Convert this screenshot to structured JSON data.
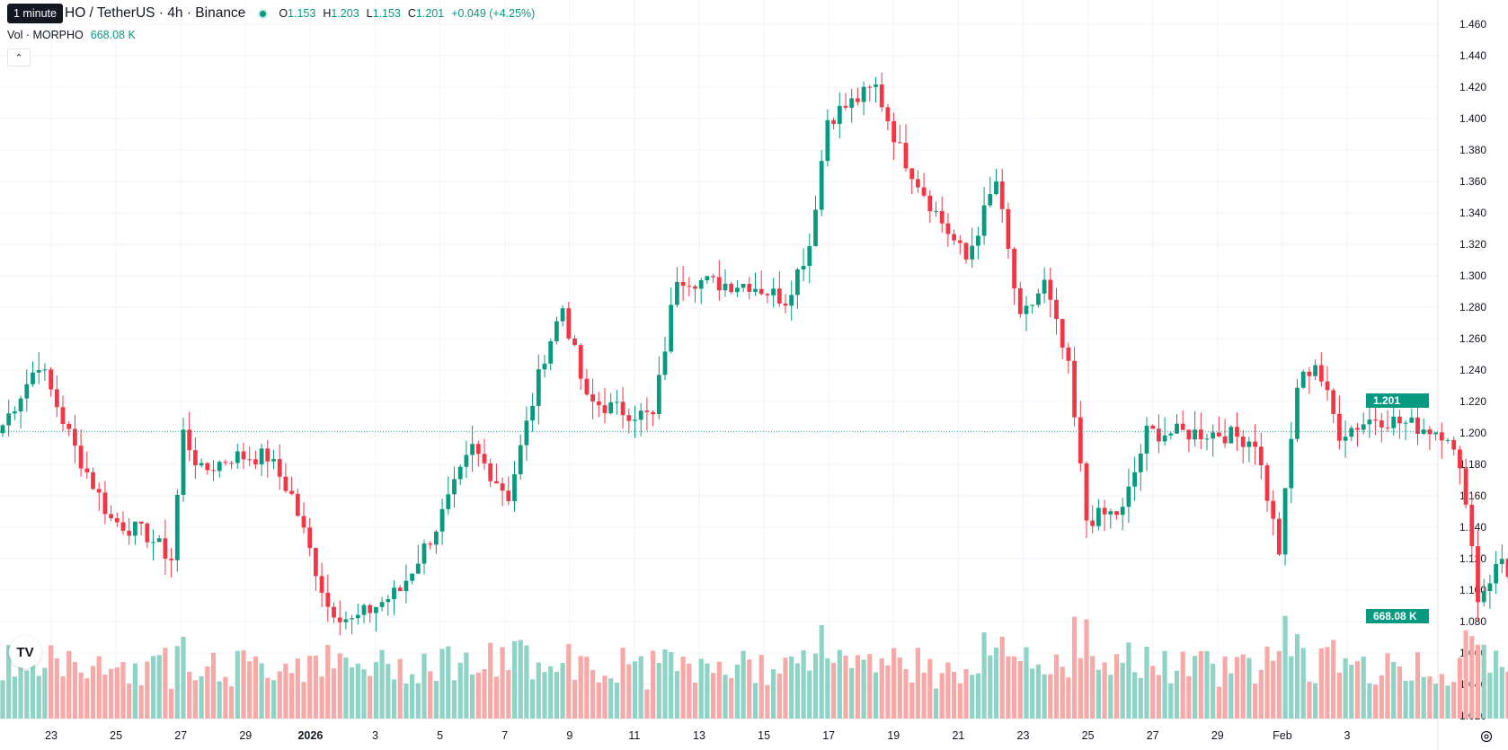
{
  "header": {
    "title": "HO / TetherUS · 4h · Binance",
    "tooltip": "1 minute",
    "ohlc": {
      "o_label": "O",
      "o": "1.153",
      "h_label": "H",
      "h": "1.203",
      "l_label": "L",
      "l": "1.153",
      "c_label": "C",
      "c": "1.201",
      "change": "+0.049 (+4.25%)"
    }
  },
  "volume_legend": {
    "label": "Vol · MORPHO",
    "value": "668.08 K"
  },
  "price_tag": "1.201",
  "volume_tag": "668.08 K",
  "logo_text": "TV",
  "colors": {
    "up": "#089981",
    "down": "#f23645",
    "up_vol": "#8fd3c7",
    "down_vol": "#f7a9a7",
    "grid": "#f0f3fa"
  },
  "chart_data": {
    "type": "candlestick",
    "symbol": "MORPHO / TetherUS",
    "interval": "4h",
    "exchange": "Binance",
    "y_ticks": [
      "1.460",
      "1.440",
      "1.420",
      "1.400",
      "1.380",
      "1.360",
      "1.340",
      "1.320",
      "1.300",
      "1.280",
      "1.260",
      "1.240",
      "1.220",
      "1.200",
      "1.180",
      "1.160",
      "1.140",
      "1.120",
      "1.100",
      "1.080",
      "1.060",
      "1.040",
      "1.020"
    ],
    "ylim": [
      1.0,
      1.47
    ],
    "x_ticks": [
      "23",
      "25",
      "27",
      "29",
      "2026",
      "3",
      "5",
      "7",
      "9",
      "11",
      "13",
      "15",
      "17",
      "19",
      "21",
      "23",
      "25",
      "27",
      "29",
      "Feb",
      "3"
    ],
    "last_close": 1.201,
    "anchors": [
      {
        "t": 0,
        "p": 1.205
      },
      {
        "t": 6,
        "p": 1.245
      },
      {
        "t": 12,
        "p": 1.19
      },
      {
        "t": 18,
        "p": 1.145
      },
      {
        "t": 24,
        "p": 1.135
      },
      {
        "t": 28,
        "p": 1.12
      },
      {
        "t": 30,
        "p": 1.2
      },
      {
        "t": 33,
        "p": 1.175
      },
      {
        "t": 38,
        "p": 1.185
      },
      {
        "t": 44,
        "p": 1.185
      },
      {
        "t": 48,
        "p": 1.16
      },
      {
        "t": 54,
        "p": 1.09
      },
      {
        "t": 58,
        "p": 1.08
      },
      {
        "t": 66,
        "p": 1.1
      },
      {
        "t": 72,
        "p": 1.14
      },
      {
        "t": 78,
        "p": 1.19
      },
      {
        "t": 84,
        "p": 1.16
      },
      {
        "t": 90,
        "p": 1.25
      },
      {
        "t": 93,
        "p": 1.28
      },
      {
        "t": 97,
        "p": 1.22
      },
      {
        "t": 102,
        "p": 1.215
      },
      {
        "t": 108,
        "p": 1.21
      },
      {
        "t": 112,
        "p": 1.3
      },
      {
        "t": 118,
        "p": 1.295
      },
      {
        "t": 124,
        "p": 1.295
      },
      {
        "t": 130,
        "p": 1.285
      },
      {
        "t": 134,
        "p": 1.32
      },
      {
        "t": 137,
        "p": 1.4
      },
      {
        "t": 141,
        "p": 1.41
      },
      {
        "t": 145,
        "p": 1.42
      },
      {
        "t": 149,
        "p": 1.38
      },
      {
        "t": 155,
        "p": 1.34
      },
      {
        "t": 160,
        "p": 1.31
      },
      {
        "t": 165,
        "p": 1.36
      },
      {
        "t": 169,
        "p": 1.27
      },
      {
        "t": 173,
        "p": 1.295
      },
      {
        "t": 177,
        "p": 1.24
      },
      {
        "t": 180,
        "p": 1.145
      },
      {
        "t": 186,
        "p": 1.15
      },
      {
        "t": 190,
        "p": 1.2
      },
      {
        "t": 196,
        "p": 1.2
      },
      {
        "t": 202,
        "p": 1.2
      },
      {
        "t": 208,
        "p": 1.195
      },
      {
        "t": 212,
        "p": 1.125
      },
      {
        "t": 215,
        "p": 1.23
      },
      {
        "t": 218,
        "p": 1.245
      },
      {
        "t": 222,
        "p": 1.2
      },
      {
        "t": 228,
        "p": 1.21
      },
      {
        "t": 234,
        "p": 1.205
      },
      {
        "t": 240,
        "p": 1.2
      },
      {
        "t": 243,
        "p": 1.16
      },
      {
        "t": 245,
        "p": 1.095
      },
      {
        "t": 249,
        "p": 1.12
      },
      {
        "t": 252,
        "p": 1.095
      },
      {
        "t": 255,
        "p": 1.15
      },
      {
        "t": 257,
        "p": 1.201
      }
    ],
    "volume_ylim": [
      0,
      1200
    ]
  }
}
